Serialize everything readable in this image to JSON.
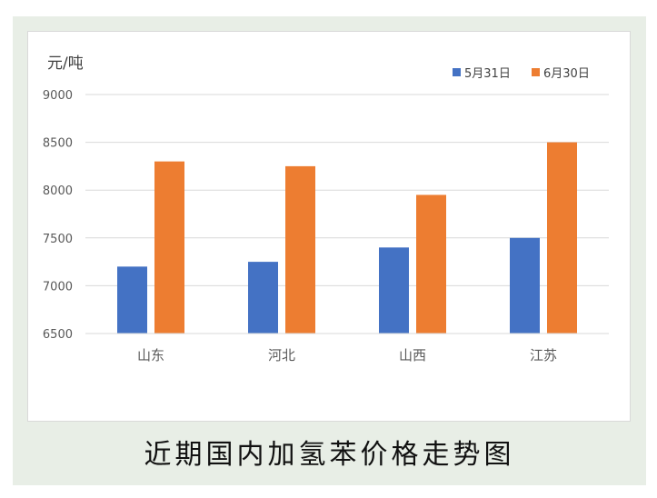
{
  "colors": {
    "series1": "#4472c4",
    "series2": "#ed7d31",
    "grid": "#d9d9d9",
    "axis_text": "#595959",
    "background": "#e8eee6"
  },
  "caption": "近期国内加氢苯价格走势图",
  "chart_data": {
    "type": "bar",
    "title": "",
    "ylabel": "元/吨",
    "xlabel": "",
    "categories": [
      "山东",
      "河北",
      "山西",
      "江苏"
    ],
    "series": [
      {
        "name": "5月31日",
        "values": [
          7200,
          7250,
          7400,
          7500
        ]
      },
      {
        "name": "6月30日",
        "values": [
          8300,
          8250,
          7950,
          8500
        ]
      }
    ],
    "ylim": [
      6500,
      9000
    ],
    "yticks": [
      "6500",
      "7000",
      "7500",
      "8000",
      "8500",
      "9000"
    ],
    "grid": true,
    "legend_position": "top-right"
  }
}
